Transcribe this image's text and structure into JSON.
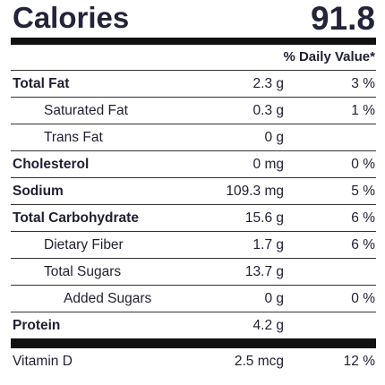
{
  "calories": {
    "label": "Calories",
    "value": "91.8"
  },
  "daily_value_header": "% Daily Value*",
  "nutrients": [
    {
      "name": "Total Fat",
      "amount": "2.3 g",
      "percent": "3 %",
      "bold": true,
      "indent": 0
    },
    {
      "name": "Saturated Fat",
      "amount": "0.3 g",
      "percent": "1 %",
      "bold": false,
      "indent": 1
    },
    {
      "name": "Trans Fat",
      "amount": "0 g",
      "percent": "",
      "bold": false,
      "indent": 1
    },
    {
      "name": "Cholesterol",
      "amount": "0 mg",
      "percent": "0 %",
      "bold": true,
      "indent": 0
    },
    {
      "name": "Sodium",
      "amount": "109.3 mg",
      "percent": "5 %",
      "bold": true,
      "indent": 0
    },
    {
      "name": "Total Carbohydrate",
      "amount": "15.6 g",
      "percent": "6 %",
      "bold": true,
      "indent": 0
    },
    {
      "name": "Dietary Fiber",
      "amount": "1.7 g",
      "percent": "6 %",
      "bold": false,
      "indent": 1
    },
    {
      "name": "Total Sugars",
      "amount": "13.7 g",
      "percent": "",
      "bold": false,
      "indent": 1
    },
    {
      "name": "Added Sugars",
      "amount": "0 g",
      "percent": "0 %",
      "bold": false,
      "indent": 2
    },
    {
      "name": "Protein",
      "amount": "4.2 g",
      "percent": "",
      "bold": true,
      "indent": 0
    }
  ],
  "vitamins": [
    {
      "name": "Vitamin D",
      "amount": "2.5 mcg",
      "percent": "12 %"
    }
  ]
}
